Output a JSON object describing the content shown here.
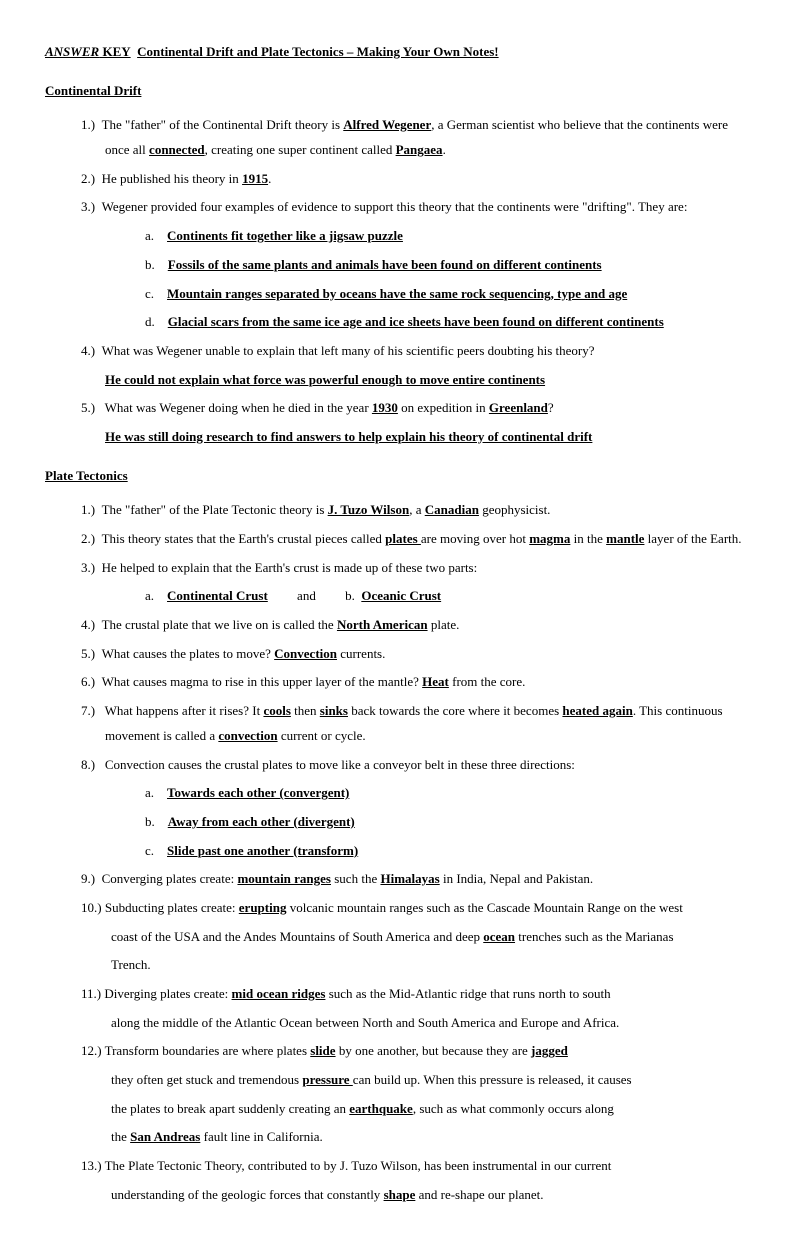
{
  "title": {
    "answer": "ANSWER",
    "key": " KEY",
    "rest": "Continental Drift and Plate Tectonics – Making Your Own Notes!"
  },
  "section1": {
    "heading": "Continental Drift",
    "items": [
      {
        "num": "1.)",
        "parts": [
          {
            "t": "The \"father\" of the Continental Drift theory is "
          },
          {
            "t": "Alfred Wegener",
            "bu": true
          },
          {
            "t": ", a German scientist who believe that the continents were once all "
          },
          {
            "t": "connected",
            "bu": true
          },
          {
            "t": ", creating one super continent called "
          },
          {
            "t": "Pangaea",
            "bu": true
          },
          {
            "t": "."
          }
        ]
      },
      {
        "num": "2.)",
        "parts": [
          {
            "t": "He published his theory in "
          },
          {
            "t": "1915",
            "bu": true
          },
          {
            "t": "."
          }
        ]
      },
      {
        "num": "3.)",
        "parts": [
          {
            "t": "Wegener provided four examples of evidence to support this theory that the continents were \"drifting\". They are:"
          }
        ]
      }
    ],
    "subitems": [
      {
        "letter": "a.",
        "text": "Continents fit together like a jigsaw puzzle"
      },
      {
        "letter": "b.",
        "text": "Fossils of the same plants and animals have been found on different continents"
      },
      {
        "letter": "c.",
        "text": "Mountain ranges separated by oceans have the same rock sequencing, type and age"
      },
      {
        "letter": "d.",
        "text": "Glacial scars from the same ice age and ice sheets have been found on different continents"
      }
    ],
    "item4": {
      "num": "4.)",
      "q": "What was Wegener unable to explain that left many of his scientific peers doubting his theory?",
      "a": "He could not explain what force was powerful enough to move entire continents"
    },
    "item5": {
      "num": "5.)",
      "parts": [
        {
          "t": " What was Wegener doing when he died in the year "
        },
        {
          "t": "1930",
          "bu": true
        },
        {
          "t": " on expedition in "
        },
        {
          "t": "Greenland",
          "bu": true
        },
        {
          "t": "?"
        }
      ],
      "a": "He was still doing research to find answers to help explain his theory of continental drift"
    }
  },
  "section2": {
    "heading": "Plate Tectonics",
    "items": [
      {
        "num": "1.)",
        "parts": [
          {
            "t": "The \"father\" of the Plate Tectonic theory is "
          },
          {
            "t": "J. Tuzo Wilson",
            "bu": true
          },
          {
            "t": ", a "
          },
          {
            "t": "Canadian",
            "bu": true
          },
          {
            "t": " geophysicist."
          }
        ]
      },
      {
        "num": "2.)",
        "parts": [
          {
            "t": "This theory states that the Earth's crustal pieces called "
          },
          {
            "t": "plates ",
            "bu": true
          },
          {
            "t": "are moving over hot "
          },
          {
            "t": "magma",
            "bu": true
          },
          {
            "t": " in the "
          },
          {
            "t": "mantle",
            "bu": true
          },
          {
            "t": " layer of the Earth."
          }
        ]
      },
      {
        "num": "3.)",
        "parts": [
          {
            "t": "He helped to explain that the Earth's crust is made up of these two parts:"
          }
        ]
      }
    ],
    "sub3": {
      "a_letter": "a.",
      "a_text": "Continental Crust",
      "and": "and",
      "b_letter": "b.",
      "b_text": "Oceanic Crust"
    },
    "items2": [
      {
        "num": "4.)",
        "parts": [
          {
            "t": "The crustal plate that we live on is called the "
          },
          {
            "t": "North American",
            "bu": true
          },
          {
            "t": " plate."
          }
        ]
      },
      {
        "num": "5.)",
        "parts": [
          {
            "t": "What causes the plates to move?  "
          },
          {
            "t": "Convection",
            "bu": true
          },
          {
            "t": " currents."
          }
        ]
      },
      {
        "num": "6.)",
        "parts": [
          {
            "t": "What causes magma to rise in this upper layer of the mantle? "
          },
          {
            "t": "Heat",
            "bu": true
          },
          {
            "t": " from the core."
          }
        ]
      },
      {
        "num": "7.)",
        "parts": [
          {
            "t": " What happens after it rises?  It "
          },
          {
            "t": "cools",
            "bu": true
          },
          {
            "t": " then "
          },
          {
            "t": "sinks",
            "bu": true
          },
          {
            "t": " back towards the core where it becomes "
          },
          {
            "t": "heated again",
            "bu": true
          },
          {
            "t": ". This continuous movement is called a "
          },
          {
            "t": "convection",
            "bu": true
          },
          {
            "t": " current or cycle."
          }
        ]
      },
      {
        "num": "8.)",
        "parts": [
          {
            "t": " Convection causes the crustal plates to move like a conveyor belt in these three directions:"
          }
        ]
      }
    ],
    "sub8": [
      {
        "letter": "a.",
        "text": "Towards each other (convergent)"
      },
      {
        "letter": "b.",
        "text": "Away from each other (divergent)"
      },
      {
        "letter": "c.",
        "text": "Slide past one another (transform)"
      }
    ],
    "item9": {
      "num": "9.)",
      "parts": [
        {
          "t": "Converging plates create: "
        },
        {
          "t": "mountain ranges",
          "bu": true
        },
        {
          "t": " such the "
        },
        {
          "t": "Himalayas",
          "bu": true
        },
        {
          "t": " in India, Nepal and Pakistan."
        }
      ]
    },
    "item10": {
      "num": "10.)",
      "line1": [
        {
          "t": " Subducting plates create: "
        },
        {
          "t": "erupting",
          "bu": true
        },
        {
          "t": " volcanic mountain ranges such as the Cascade Mountain Range on the west"
        }
      ],
      "line2": [
        {
          "t": "coast of the USA and the Andes Mountains of South America and deep "
        },
        {
          "t": "ocean",
          "bu": true
        },
        {
          "t": " trenches such as the Marianas"
        }
      ],
      "line3": [
        {
          "t": "Trench."
        }
      ]
    },
    "item11": {
      "num": "11.)",
      "line1": [
        {
          "t": " Diverging plates create: "
        },
        {
          "t": "mid ocean ridges",
          "bu": true
        },
        {
          "t": " such as the Mid-Atlantic ridge that runs north to south"
        }
      ],
      "line2": [
        {
          "t": "along the middle of the Atlantic Ocean between North and South America and Europe and Africa."
        }
      ]
    },
    "item12": {
      "num": "12.)",
      "line1": [
        {
          "t": "  Transform boundaries are where plates "
        },
        {
          "t": "slide",
          "bu": true
        },
        {
          "t": " by one another, but because they are "
        },
        {
          "t": "jagged",
          "bu": true
        }
      ],
      "line2": [
        {
          "t": "they often get stuck and tremendous "
        },
        {
          "t": "pressure ",
          "bu": true
        },
        {
          "t": "can build up. When this pressure is released, it causes"
        }
      ],
      "line3": [
        {
          "t": "the plates to break apart suddenly creating an "
        },
        {
          "t": "earthquake",
          "bu": true
        },
        {
          "t": ", such as what commonly occurs along"
        }
      ],
      "line4": [
        {
          "t": "the "
        },
        {
          "t": "San Andreas",
          "bu": true
        },
        {
          "t": " fault line in California."
        }
      ]
    },
    "item13": {
      "num": "13.)",
      "line1": [
        {
          "t": " The Plate Tectonic Theory, contributed to by J. Tuzo Wilson, has been instrumental in our current"
        }
      ],
      "line2": [
        {
          "t": "understanding of the geologic forces that constantly "
        },
        {
          "t": "shape",
          "bu": true
        },
        {
          "t": " and re-shape our planet."
        }
      ]
    }
  }
}
